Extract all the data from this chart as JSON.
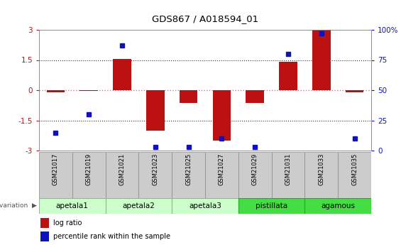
{
  "title": "GDS867 / A018594_01",
  "samples": [
    "GSM21017",
    "GSM21019",
    "GSM21021",
    "GSM21023",
    "GSM21025",
    "GSM21027",
    "GSM21029",
    "GSM21031",
    "GSM21033",
    "GSM21035"
  ],
  "log_ratios": [
    -0.1,
    -0.05,
    1.55,
    -2.0,
    -0.65,
    -2.5,
    -0.65,
    1.4,
    3.0,
    -0.12
  ],
  "percentile_ranks": [
    15,
    30,
    87,
    3,
    3,
    10,
    3,
    80,
    97,
    10
  ],
  "groups": [
    {
      "name": "apetala1",
      "samples_idx": [
        0,
        1
      ],
      "color": "#ccffcc",
      "border": "#88bb88"
    },
    {
      "name": "apetala2",
      "samples_idx": [
        2,
        3
      ],
      "color": "#ccffcc",
      "border": "#88bb88"
    },
    {
      "name": "apetala3",
      "samples_idx": [
        4,
        5
      ],
      "color": "#ccffcc",
      "border": "#88bb88"
    },
    {
      "name": "pistillata",
      "samples_idx": [
        6,
        7
      ],
      "color": "#44dd44",
      "border": "#22aa22"
    },
    {
      "name": "agamous",
      "samples_idx": [
        8,
        9
      ],
      "color": "#44dd44",
      "border": "#22aa22"
    }
  ],
  "ylim": [
    -3,
    3
  ],
  "y2lim": [
    0,
    100
  ],
  "y_ticks": [
    -3,
    -1.5,
    0,
    1.5,
    3
  ],
  "y2_ticks": [
    0,
    25,
    50,
    75,
    100
  ],
  "bar_color": "#bb1111",
  "dot_color": "#1111bb",
  "zero_line_color": "#ff6666",
  "grid_color": "#333333",
  "sample_box_color": "#cccccc",
  "sample_box_edge": "#888888"
}
